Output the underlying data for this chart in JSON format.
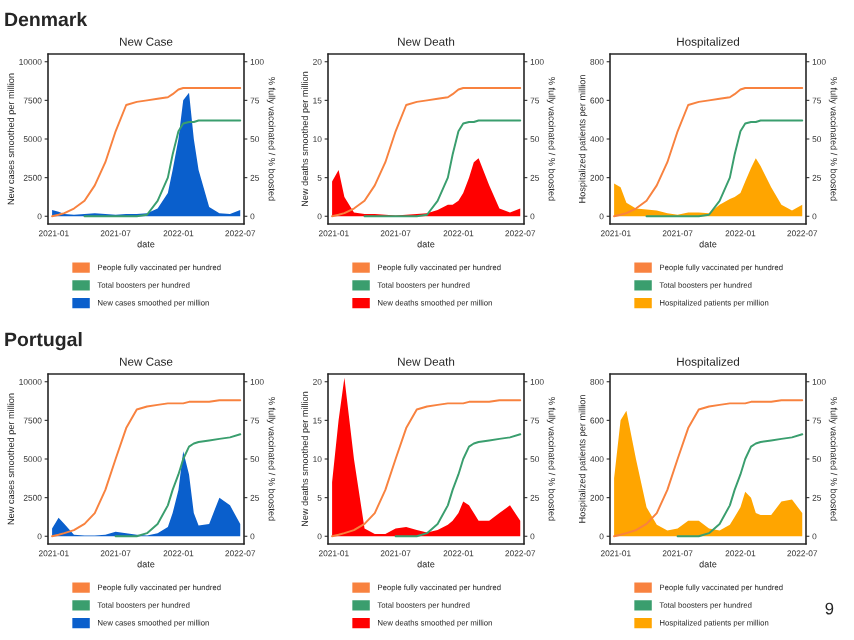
{
  "chart_data": [
    {
      "type": "area",
      "title": "New Case",
      "xlabel": "date",
      "ylabel": "New cases smoothed per million",
      "y2label": "% fully vaccinated / % boosted",
      "annotations": [
        "Denmark"
      ],
      "x": [
        "2020-12-27",
        "2021-01-15",
        "2021-02-01",
        "2021-03-01",
        "2021-04-01",
        "2021-05-01",
        "2021-06-01",
        "2021-07-01",
        "2021-08-01",
        "2021-09-01",
        "2021-10-01",
        "2021-11-01",
        "2021-12-01",
        "2021-12-15",
        "2022-01-01",
        "2022-01-15",
        "2022-02-01",
        "2022-02-15",
        "2022-03-01",
        "2022-04-01",
        "2022-05-01",
        "2022-06-01",
        "2022-07-01"
      ],
      "xlim": [
        "2020-12-15",
        "2022-07-12"
      ],
      "xticks": [
        "2021-01",
        "2021-07",
        "2022-01",
        "2022-07"
      ],
      "ylim": [
        -500,
        10500
      ],
      "yticks": [
        0,
        2500,
        5000,
        7500,
        10000
      ],
      "y2lim": [
        -5,
        105
      ],
      "y2ticks": [
        0,
        25,
        50,
        75,
        100
      ],
      "legend": "bottom",
      "grid": false,
      "series": [
        {
          "name": "New cases smoothed per million",
          "color": "#0a5fcc",
          "values": [
            400,
            300,
            150,
            100,
            150,
            200,
            150,
            100,
            150,
            150,
            200,
            500,
            1500,
            3000,
            5000,
            7500,
            8000,
            5000,
            3000,
            600,
            200,
            150,
            400
          ]
        },
        {
          "name": "People fully vaccinated per hundred",
          "type": "line",
          "axis": "y2",
          "color": "#f8823f",
          "values": [
            0,
            1,
            2,
            5,
            10,
            20,
            35,
            55,
            72,
            74,
            75,
            76,
            77,
            79,
            82,
            83,
            83,
            83,
            83,
            83,
            83,
            83,
            83
          ]
        },
        {
          "name": "Total boosters per hundred",
          "type": "line",
          "axis": "y2",
          "color": "#3a9e6e",
          "values": [
            null,
            null,
            null,
            null,
            0,
            0,
            0,
            0,
            0,
            0,
            1,
            10,
            25,
            40,
            55,
            60,
            61,
            61,
            62,
            62,
            62,
            62,
            62
          ]
        }
      ]
    },
    {
      "type": "area",
      "title": "New Death",
      "xlabel": "date",
      "ylabel": "New deaths smoothed per million",
      "y2label": "% fully vaccinated / % boosted",
      "x": [
        "2020-12-27",
        "2021-01-15",
        "2021-02-01",
        "2021-03-01",
        "2021-04-01",
        "2021-05-01",
        "2021-06-01",
        "2021-07-01",
        "2021-08-01",
        "2021-09-01",
        "2021-10-01",
        "2021-11-01",
        "2021-12-01",
        "2021-12-15",
        "2022-01-01",
        "2022-01-15",
        "2022-02-01",
        "2022-02-15",
        "2022-03-01",
        "2022-04-01",
        "2022-05-01",
        "2022-06-01",
        "2022-07-01"
      ],
      "xlim": [
        "2020-12-15",
        "2022-07-12"
      ],
      "xticks": [
        "2021-01",
        "2021-07",
        "2022-01",
        "2022-07"
      ],
      "ylim": [
        -1,
        21
      ],
      "yticks": [
        0,
        5,
        10,
        15,
        20
      ],
      "y2lim": [
        -5,
        105
      ],
      "y2ticks": [
        0,
        25,
        50,
        75,
        100
      ],
      "legend": "bottom",
      "grid": false,
      "series": [
        {
          "name": "New deaths smoothed per million",
          "color": "#ff0000",
          "values": [
            4.5,
            6,
            2.5,
            0.5,
            0.3,
            0.3,
            0.2,
            0.1,
            0.2,
            0.3,
            0.4,
            0.8,
            1.5,
            1.5,
            2,
            3,
            5,
            7,
            7.5,
            4,
            1,
            0.5,
            1
          ]
        },
        {
          "name": "People fully vaccinated per hundred",
          "type": "line",
          "axis": "y2",
          "color": "#f8823f",
          "values": [
            0,
            1,
            2,
            5,
            10,
            20,
            35,
            55,
            72,
            74,
            75,
            76,
            77,
            79,
            82,
            83,
            83,
            83,
            83,
            83,
            83,
            83,
            83
          ]
        },
        {
          "name": "Total boosters per hundred",
          "type": "line",
          "axis": "y2",
          "color": "#3a9e6e",
          "values": [
            null,
            null,
            null,
            null,
            0,
            0,
            0,
            0,
            0,
            0,
            1,
            10,
            25,
            40,
            55,
            60,
            61,
            61,
            62,
            62,
            62,
            62,
            62
          ]
        }
      ]
    },
    {
      "type": "area",
      "title": "Hospitalized",
      "xlabel": "date",
      "ylabel": "Hospitalized patients per million",
      "y2label": "% fully vaccinated / % boosted",
      "x": [
        "2020-12-27",
        "2021-01-15",
        "2021-02-01",
        "2021-03-01",
        "2021-04-01",
        "2021-05-01",
        "2021-06-01",
        "2021-07-01",
        "2021-08-01",
        "2021-09-01",
        "2021-10-01",
        "2021-11-01",
        "2021-12-01",
        "2021-12-15",
        "2022-01-01",
        "2022-01-15",
        "2022-02-01",
        "2022-02-15",
        "2022-03-01",
        "2022-04-01",
        "2022-05-01",
        "2022-06-01",
        "2022-07-01"
      ],
      "xlim": [
        "2020-12-15",
        "2022-07-12"
      ],
      "xticks": [
        "2021-01",
        "2021-07",
        "2022-01",
        "2022-07"
      ],
      "ylim": [
        -40,
        840
      ],
      "yticks": [
        0,
        200,
        400,
        600,
        800
      ],
      "y2lim": [
        -5,
        105
      ],
      "y2ticks": [
        0,
        25,
        50,
        75,
        100
      ],
      "legend": "bottom",
      "grid": false,
      "series": [
        {
          "name": "Hospitalized patients per million",
          "color": "#ffa500",
          "values": [
            170,
            150,
            70,
            40,
            35,
            30,
            15,
            8,
            20,
            20,
            15,
            60,
            90,
            100,
            120,
            180,
            250,
            300,
            260,
            150,
            60,
            30,
            60
          ]
        },
        {
          "name": "People fully vaccinated per hundred",
          "type": "line",
          "axis": "y2",
          "color": "#f8823f",
          "values": [
            0,
            1,
            2,
            5,
            10,
            20,
            35,
            55,
            72,
            74,
            75,
            76,
            77,
            79,
            82,
            83,
            83,
            83,
            83,
            83,
            83,
            83,
            83
          ]
        },
        {
          "name": "Total boosters per hundred",
          "type": "line",
          "axis": "y2",
          "color": "#3a9e6e",
          "values": [
            null,
            null,
            null,
            null,
            0,
            0,
            0,
            0,
            0,
            0,
            1,
            10,
            25,
            40,
            55,
            60,
            61,
            61,
            62,
            62,
            62,
            62,
            62
          ]
        }
      ]
    },
    {
      "type": "area",
      "title": "New Case",
      "xlabel": "date",
      "ylabel": "New cases smoothed per million",
      "y2label": "% fully vaccinated / % boosted",
      "annotations": [
        "Portugal"
      ],
      "x": [
        "2020-12-27",
        "2021-01-15",
        "2021-02-01",
        "2021-03-01",
        "2021-04-01",
        "2021-05-01",
        "2021-06-01",
        "2021-07-01",
        "2021-08-01",
        "2021-09-01",
        "2021-10-01",
        "2021-11-01",
        "2021-12-01",
        "2021-12-15",
        "2022-01-01",
        "2022-01-15",
        "2022-02-01",
        "2022-02-15",
        "2022-03-01",
        "2022-04-01",
        "2022-05-01",
        "2022-06-01",
        "2022-07-01"
      ],
      "xlim": [
        "2020-12-15",
        "2022-07-12"
      ],
      "xticks": [
        "2021-01",
        "2021-07",
        "2022-01",
        "2022-07"
      ],
      "ylim": [
        -500,
        10500
      ],
      "yticks": [
        0,
        2500,
        5000,
        7500,
        10000
      ],
      "y2lim": [
        -5,
        105
      ],
      "y2ticks": [
        0,
        25,
        50,
        75,
        100
      ],
      "legend": "bottom",
      "grid": false,
      "series": [
        {
          "name": "New cases smoothed per million",
          "color": "#0a5fcc",
          "values": [
            500,
            1200,
            800,
            100,
            50,
            50,
            100,
            300,
            200,
            100,
            50,
            200,
            600,
            1500,
            3000,
            5500,
            4000,
            1500,
            700,
            800,
            2500,
            2000,
            800
          ]
        },
        {
          "name": "People fully vaccinated per hundred",
          "type": "line",
          "axis": "y2",
          "color": "#f8823f",
          "values": [
            0,
            1,
            2,
            4,
            8,
            15,
            30,
            50,
            70,
            82,
            84,
            85,
            86,
            86,
            86,
            86,
            87,
            87,
            87,
            87,
            88,
            88,
            88
          ]
        },
        {
          "name": "Total boosters per hundred",
          "type": "line",
          "axis": "y2",
          "color": "#3a9e6e",
          "values": [
            null,
            null,
            null,
            null,
            null,
            null,
            null,
            0,
            0,
            0,
            2,
            8,
            20,
            30,
            40,
            50,
            58,
            60,
            61,
            62,
            63,
            64,
            66
          ]
        }
      ]
    },
    {
      "type": "area",
      "title": "New Death",
      "xlabel": "date",
      "ylabel": "New deaths smoothed per million",
      "y2label": "% fully vaccinated / % boosted",
      "x": [
        "2020-12-27",
        "2021-01-15",
        "2021-02-01",
        "2021-03-01",
        "2021-04-01",
        "2021-05-01",
        "2021-06-01",
        "2021-07-01",
        "2021-08-01",
        "2021-09-01",
        "2021-10-01",
        "2021-11-01",
        "2021-12-01",
        "2021-12-15",
        "2022-01-01",
        "2022-01-15",
        "2022-02-01",
        "2022-02-15",
        "2022-03-01",
        "2022-04-01",
        "2022-05-01",
        "2022-06-01",
        "2022-07-01"
      ],
      "xlim": [
        "2020-12-15",
        "2022-07-12"
      ],
      "xticks": [
        "2021-01",
        "2021-07",
        "2022-01",
        "2022-07"
      ],
      "ylim": [
        -1,
        21
      ],
      "yticks": [
        0,
        5,
        10,
        15,
        20
      ],
      "y2lim": [
        -5,
        105
      ],
      "y2ticks": [
        0,
        25,
        50,
        75,
        100
      ],
      "legend": "bottom",
      "grid": false,
      "series": [
        {
          "name": "New deaths smoothed per million",
          "color": "#ff0000",
          "values": [
            7,
            15,
            20.5,
            10,
            1,
            0.3,
            0.3,
            1,
            1.2,
            0.8,
            0.5,
            0.8,
            1.5,
            2,
            3,
            4.5,
            4,
            3,
            2,
            2,
            3,
            4,
            2
          ]
        },
        {
          "name": "People fully vaccinated per hundred",
          "type": "line",
          "axis": "y2",
          "color": "#f8823f",
          "values": [
            0,
            1,
            2,
            4,
            8,
            15,
            30,
            50,
            70,
            82,
            84,
            85,
            86,
            86,
            86,
            86,
            87,
            87,
            87,
            87,
            88,
            88,
            88
          ]
        },
        {
          "name": "Total boosters per hundred",
          "type": "line",
          "axis": "y2",
          "color": "#3a9e6e",
          "values": [
            null,
            null,
            null,
            null,
            null,
            null,
            null,
            0,
            0,
            0,
            2,
            8,
            20,
            30,
            40,
            50,
            58,
            60,
            61,
            62,
            63,
            64,
            66
          ]
        }
      ]
    },
    {
      "type": "area",
      "title": "Hospitalized",
      "xlabel": "date",
      "ylabel": "Hospitalized patients per million",
      "y2label": "% fully vaccinated / % boosted",
      "annotations": [
        "9"
      ],
      "x": [
        "2020-12-27",
        "2021-01-15",
        "2021-02-01",
        "2021-03-01",
        "2021-04-01",
        "2021-05-01",
        "2021-06-01",
        "2021-07-01",
        "2021-08-01",
        "2021-09-01",
        "2021-10-01",
        "2021-11-01",
        "2021-12-01",
        "2021-12-15",
        "2022-01-01",
        "2022-01-15",
        "2022-02-01",
        "2022-02-15",
        "2022-03-01",
        "2022-04-01",
        "2022-05-01",
        "2022-06-01",
        "2022-07-01"
      ],
      "xlim": [
        "2020-12-15",
        "2022-07-12"
      ],
      "xticks": [
        "2021-01",
        "2021-07",
        "2022-01",
        "2022-07"
      ],
      "ylim": [
        -40,
        840
      ],
      "yticks": [
        0,
        200,
        400,
        600,
        800
      ],
      "y2lim": [
        -5,
        105
      ],
      "y2ticks": [
        0,
        25,
        50,
        75,
        100
      ],
      "legend": "bottom",
      "grid": false,
      "series": [
        {
          "name": "Hospitalized patients per million",
          "color": "#ffa500",
          "values": [
            300,
            600,
            650,
            400,
            150,
            60,
            30,
            40,
            80,
            80,
            40,
            30,
            60,
            100,
            150,
            230,
            200,
            120,
            110,
            110,
            180,
            190,
            120
          ]
        },
        {
          "name": "People fully vaccinated per hundred",
          "type": "line",
          "axis": "y2",
          "color": "#f8823f",
          "values": [
            0,
            1,
            2,
            4,
            8,
            15,
            30,
            50,
            70,
            82,
            84,
            85,
            86,
            86,
            86,
            86,
            87,
            87,
            87,
            87,
            88,
            88,
            88
          ]
        },
        {
          "name": "Total boosters per hundred",
          "type": "line",
          "axis": "y2",
          "color": "#3a9e6e",
          "values": [
            null,
            null,
            null,
            null,
            null,
            null,
            null,
            0,
            0,
            0,
            2,
            8,
            20,
            30,
            40,
            50,
            58,
            60,
            61,
            62,
            63,
            64,
            66
          ]
        }
      ]
    }
  ]
}
